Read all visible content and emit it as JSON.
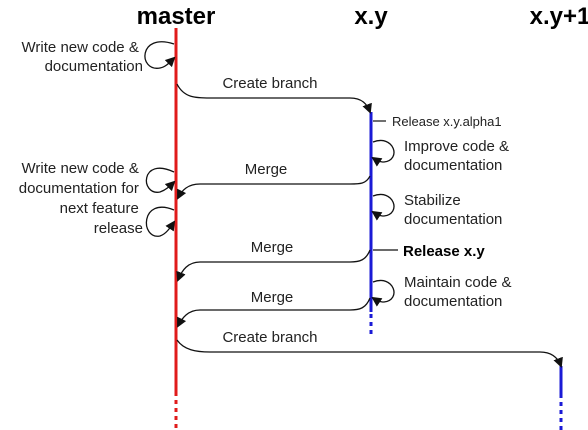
{
  "headers": {
    "master": "master",
    "xy": "x.y",
    "xy1": "x.y+1"
  },
  "colors": {
    "master": "#e01b1b",
    "branch": "#1a1ad6",
    "arrow": "#111111"
  },
  "master_notes": {
    "write_code_1": [
      "Write new code &",
      "documentation"
    ],
    "write_code_2": [
      "Write new code &",
      "documentation for",
      "next feature",
      "release"
    ]
  },
  "branch_notes": {
    "release_alpha": "Release x.y.alpha1",
    "improve": [
      "Improve code &",
      "documentation"
    ],
    "stabilize": [
      "Stabilize",
      "documentation"
    ],
    "release": "Release x.y",
    "maintain": [
      "Maintain code &",
      "documentation"
    ]
  },
  "arrows": {
    "create_branch_1": "Create branch",
    "merge_1": "Merge",
    "merge_2": "Merge",
    "merge_3": "Merge",
    "create_branch_2": "Create branch"
  }
}
